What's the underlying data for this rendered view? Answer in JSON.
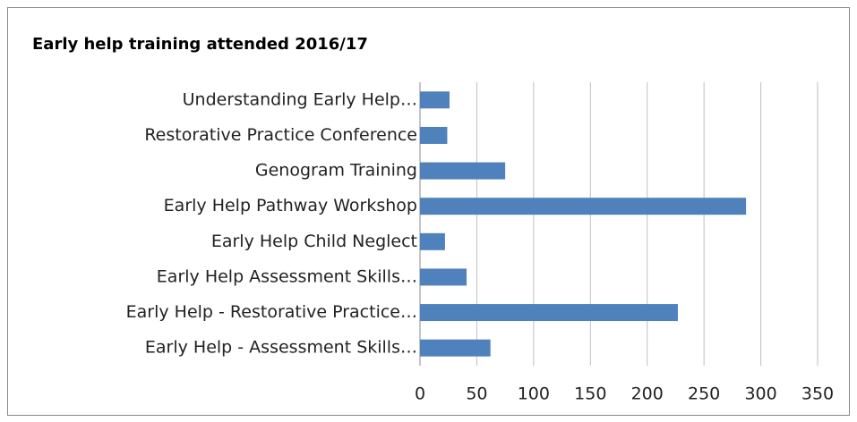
{
  "chart_data": {
    "type": "bar",
    "orientation": "horizontal",
    "title": "Early help training attended 2016/17",
    "categories": [
      "Understanding Early Help…",
      "Restorative Practice Conference",
      "Genogram Training",
      "Early Help Pathway Workshop",
      "Early Help Child Neglect",
      "Early Help Assessment Skills…",
      "Early Help - Restorative Practice…",
      "Early Help - Assessment Skills…"
    ],
    "values": [
      26,
      24,
      75,
      287,
      22,
      41,
      227,
      62
    ],
    "color": "#4f81bd",
    "xlim": [
      0,
      350
    ],
    "xticks": [
      0,
      50,
      100,
      150,
      200,
      250,
      300,
      350
    ],
    "grid": true
  }
}
